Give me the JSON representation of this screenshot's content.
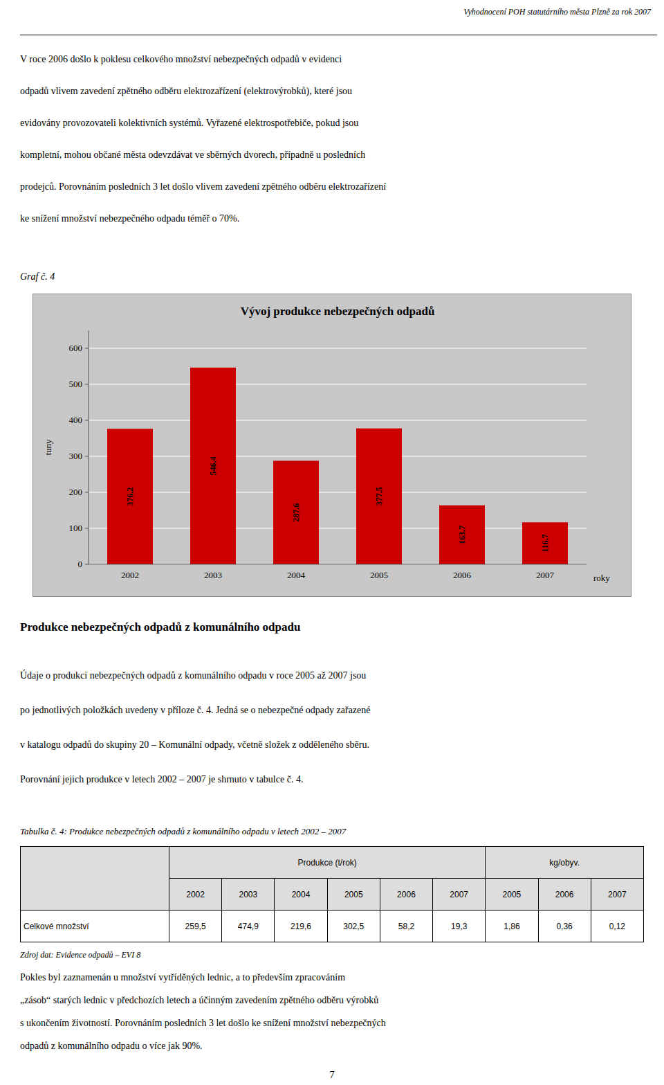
{
  "header_text": "Vyhodnocení POH statutárního města Plzně za rok 2007",
  "paragraph_1": [
    "V roce 2006 došlo k poklesu celkového množství nebezpečných odpadů v evidenci",
    "odpadů vlivem zavedení zpětného odběru elektrozařízení (elektrovýrobků), které jsou",
    "evidovány provozovateli kolektivních systémů. Vyřazené elektrospotřebiče, pokud jsou",
    "kompletní, mohou občané města odevzdávat ve sběrných dvorech, případně u posledních",
    "prodejců. Porovnáním posledních 3 let došlo vlivem zavedení zpětného odběru elektrozařízení",
    "ke snížení množství nebezpečného odpadu téměř o 70%."
  ],
  "graf_label": "Graf č. 4",
  "chart_data": {
    "type": "bar",
    "title": "Vývoj produkce nebezpečných odpadů",
    "categories": [
      "2002",
      "2003",
      "2004",
      "2005",
      "2006",
      "2007"
    ],
    "values": [
      376.2,
      546.4,
      287.6,
      377.5,
      163.7,
      116.7
    ],
    "color": "#CC0000",
    "ylabel": "tuny",
    "xlabel": "roky",
    "ylim": [
      0,
      650
    ],
    "yticks": [
      0,
      100,
      200,
      300,
      400,
      500,
      600
    ],
    "grid": true,
    "data_labels": true
  },
  "section_title": "Produkce nebezpečných odpadů z komunálního odpadu",
  "paragraph_2": [
    "Údaje o produkci nebezpečných odpadů z komunálního odpadu v roce 2005 až 2007 jsou",
    "po jednotlivých položkách uvedeny v příloze č. 4. Jedná se o nebezpečné odpady zařazené",
    "v katalogu odpadů do skupiny 20 – Komunální odpady, včetně složek z odděleného sběru.",
    "Porovnání jejich produkce v letech 2002 – 2007 je shrnuto v tabulce č. 4."
  ],
  "table": {
    "caption": "Tabulka č. 4: Produkce nebezpečných odpadů z komunálního odpadu v letech 2002 – 2007",
    "unit_prod": "Produkce (t/rok)",
    "unit_kg": "kg/obyv.",
    "years_prod": [
      "2002",
      "2003",
      "2004",
      "2005",
      "2006",
      "2007"
    ],
    "years_kg": [
      "2005",
      "2006",
      "2007"
    ],
    "row_label": "Celkové množství",
    "values_prod": [
      "259,5",
      "474,9",
      "219,6",
      "302,5",
      "58,2",
      "19,3"
    ],
    "values_kg": [
      "1,86",
      "0,36",
      "0,12"
    ]
  },
  "source_text": "Zdroj dat: Evidence odpadů – EVI 8",
  "paragraph_3": [
    "Pokles byl zaznamenán u množství vytříděných lednic, a to především zpracováním",
    "„zásob“ starých lednic v předchozích letech a účinným zavedením zpětného odběru výrobků",
    "s ukončením životností. Porovnáním posledních 3 let došlo ke snížení množství nebezpečných",
    "odpadů z komunálního odpadu o více jak 90%."
  ],
  "page_number": "7"
}
